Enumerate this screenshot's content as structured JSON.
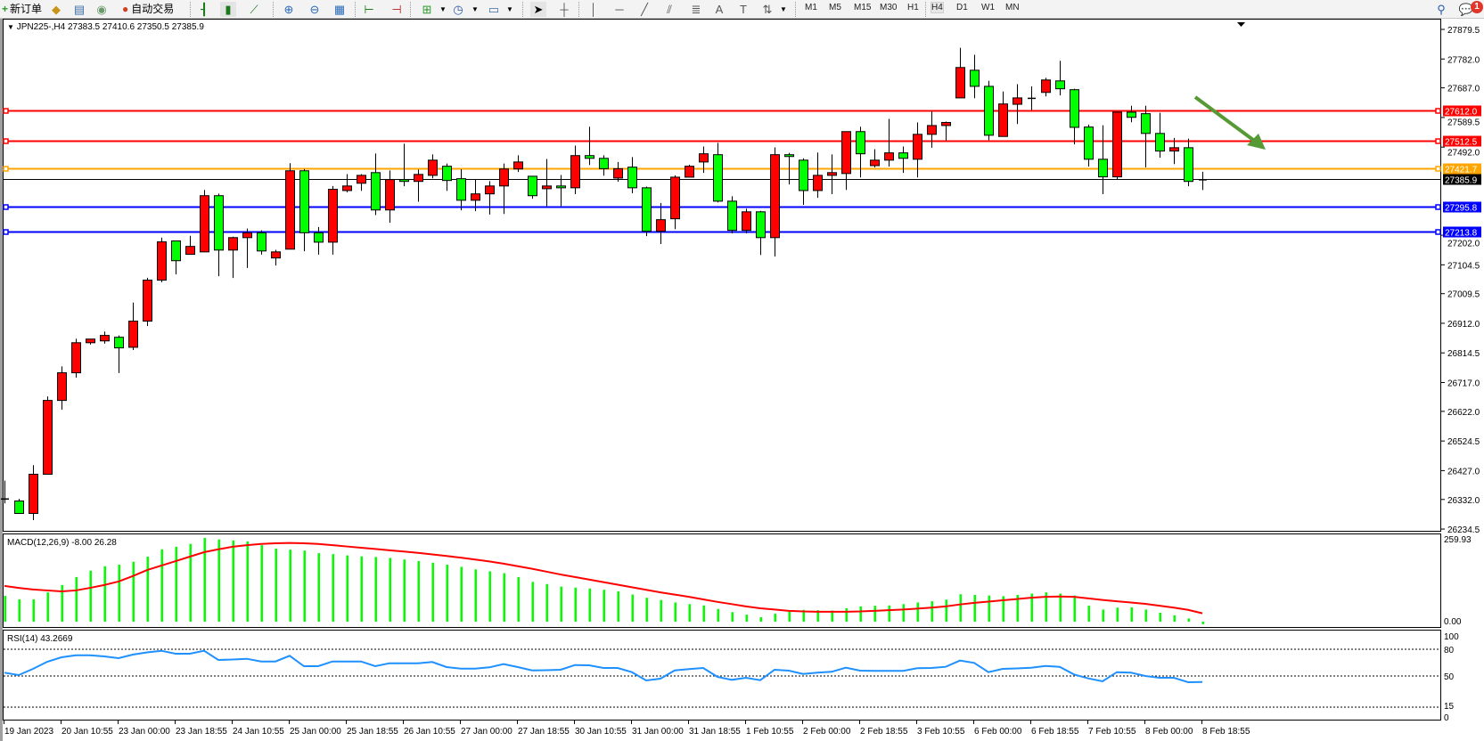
{
  "toolbar": {
    "new_order_label": "新订单",
    "autotrade_label": "自动交易",
    "icons": [
      "new-order-icon",
      "market-watch-icon",
      "navigator-icon",
      "signals-icon",
      "autotrading-icon",
      "bar-chart-icon",
      "candlestick-icon",
      "line-chart-icon",
      "zoom-in-icon",
      "zoom-out-icon",
      "tile-windows-icon",
      "chart-shift-icon",
      "autoscroll-icon",
      "new-chart-icon",
      "periods-icon",
      "templates-icon",
      "cursor-icon",
      "crosshair-icon",
      "vertical-line-icon",
      "horizontal-line-icon",
      "trendline-icon",
      "equidistant-channel-icon",
      "fibonacci-icon",
      "text-icon",
      "text-label-icon",
      "arrows-icon",
      "search-icon",
      "notifications-icon"
    ],
    "timeframes": [
      "M1",
      "M5",
      "M15",
      "M30",
      "H1",
      "H4",
      "D1",
      "W1",
      "MN"
    ],
    "active_timeframe": "H4",
    "notification_count": "1"
  },
  "chart": {
    "title": "JPN225-,H4  27383.5 27410.6 27350.5 27385.9",
    "colors": {
      "bull": "#ff0000",
      "bear": "#00ff00",
      "resistance": "#ff0000",
      "pivot": "#ffa500",
      "support": "#0000ff",
      "bid": "#000000",
      "arrow": "#559a35"
    },
    "price_axis_labels": [
      "27879.5",
      "27782.0",
      "27687.0",
      "27589.5",
      "27492.0",
      "27202.0",
      "27104.5",
      "27009.5",
      "26912.0",
      "26814.5",
      "26717.0",
      "26622.0",
      "26524.5",
      "26427.0",
      "26332.0",
      "26234.5"
    ],
    "levels": [
      {
        "price": "27612.0",
        "kind": "resistance"
      },
      {
        "price": "27512.5",
        "kind": "resistance"
      },
      {
        "price": "27421.7",
        "kind": "pivot"
      },
      {
        "price": "27385.9",
        "kind": "bid"
      },
      {
        "price": "27295.8",
        "kind": "support"
      },
      {
        "price": "27213.8",
        "kind": "support"
      }
    ],
    "arrow_direction": "down",
    "time_labels": [
      "19 Jan 2023",
      "20 Jan 10:55",
      "23 Jan 00:00",
      "23 Jan 18:55",
      "24 Jan 10:55",
      "25 Jan 00:00",
      "25 Jan 18:55",
      "26 Jan 10:55",
      "27 Jan 00:00",
      "27 Jan 18:55",
      "30 Jan 10:55",
      "31 Jan 00:00",
      "31 Jan 18:55",
      "1 Feb 10:55",
      "2 Feb 00:00",
      "2 Feb 18:55",
      "3 Feb 10:55",
      "6 Feb 00:00",
      "6 Feb 18:55",
      "7 Feb 10:55",
      "8 Feb 00:00",
      "8 Feb 18:55"
    ]
  },
  "chart_data": [
    {
      "type": "candlestick",
      "title": "JPN225-,H4",
      "ylim": [
        26234.5,
        27879.5
      ],
      "ohlc": [
        [
          26335,
          26394,
          26319,
          26331
        ],
        [
          26327,
          26334,
          26286,
          26286
        ],
        [
          26286,
          26445,
          26264,
          26415
        ],
        [
          26415,
          26671,
          26415,
          26658
        ],
        [
          26658,
          26770,
          26628,
          26749
        ],
        [
          26749,
          26861,
          26733,
          26848
        ],
        [
          26848,
          26860,
          26842,
          26860
        ],
        [
          26854,
          26885,
          26845,
          26872
        ],
        [
          26866,
          26872,
          26748,
          26831
        ],
        [
          26833,
          26980,
          26824,
          26919
        ],
        [
          26919,
          27062,
          26903,
          27054
        ],
        [
          27054,
          27194,
          27047,
          27180
        ],
        [
          27183,
          27183,
          27073,
          27118
        ],
        [
          27139,
          27200,
          27139,
          27165
        ],
        [
          27147,
          27351,
          27147,
          27332
        ],
        [
          27332,
          27339,
          27067,
          27153
        ],
        [
          27153,
          27197,
          27061,
          27194
        ],
        [
          27194,
          27224,
          27094,
          27210
        ],
        [
          27210,
          27218,
          27138,
          27150
        ],
        [
          27127,
          27154,
          27102,
          27147
        ],
        [
          27156,
          27439,
          27156,
          27414
        ],
        [
          27414,
          27420,
          27149,
          27210
        ],
        [
          27210,
          27229,
          27138,
          27179
        ],
        [
          27179,
          27364,
          27138,
          27353
        ],
        [
          27349,
          27403,
          27343,
          27364
        ],
        [
          27373,
          27403,
          27348,
          27399
        ],
        [
          27408,
          27471,
          27268,
          27285
        ],
        [
          27285,
          27415,
          27243,
          27385
        ],
        [
          27385,
          27503,
          27363,
          27379
        ],
        [
          27379,
          27418,
          27312,
          27402
        ],
        [
          27399,
          27468,
          27389,
          27449
        ],
        [
          27429,
          27438,
          27348,
          27382
        ],
        [
          27388,
          27419,
          27284,
          27317
        ],
        [
          27317,
          27385,
          27281,
          27338
        ],
        [
          27338,
          27380,
          27270,
          27364
        ],
        [
          27364,
          27438,
          27272,
          27420
        ],
        [
          27420,
          27465,
          27410,
          27443
        ],
        [
          27396,
          27396,
          27322,
          27332
        ],
        [
          27355,
          27453,
          27298,
          27364
        ],
        [
          27364,
          27400,
          27298,
          27358
        ],
        [
          27358,
          27497,
          27337,
          27464
        ],
        [
          27464,
          27559,
          27433,
          27455
        ],
        [
          27455,
          27465,
          27398,
          27421
        ],
        [
          27390,
          27443,
          27378,
          27421
        ],
        [
          27426,
          27459,
          27340,
          27358
        ],
        [
          27358,
          27362,
          27199,
          27215
        ],
        [
          27215,
          27308,
          27173,
          27253
        ],
        [
          27256,
          27399,
          27222,
          27393
        ],
        [
          27393,
          27434,
          27393,
          27429
        ],
        [
          27443,
          27494,
          27407,
          27470
        ],
        [
          27467,
          27506,
          27310,
          27314
        ],
        [
          27314,
          27330,
          27208,
          27218
        ],
        [
          27218,
          27289,
          27208,
          27279
        ],
        [
          27279,
          27282,
          27137,
          27194
        ],
        [
          27194,
          27491,
          27132,
          27467
        ],
        [
          27467,
          27473,
          27369,
          27461
        ],
        [
          27449,
          27455,
          27302,
          27349
        ],
        [
          27349,
          27474,
          27325,
          27399
        ],
        [
          27399,
          27468,
          27337,
          27408
        ],
        [
          27405,
          27543,
          27351,
          27543
        ],
        [
          27543,
          27559,
          27392,
          27470
        ],
        [
          27431,
          27485,
          27425,
          27449
        ],
        [
          27449,
          27585,
          27428,
          27473
        ],
        [
          27473,
          27494,
          27407,
          27455
        ],
        [
          27452,
          27573,
          27392,
          27534
        ],
        [
          27534,
          27610,
          27490,
          27563
        ],
        [
          27563,
          27576,
          27513,
          27573
        ],
        [
          27654,
          27819,
          27654,
          27754
        ],
        [
          27745,
          27796,
          27653,
          27692
        ],
        [
          27692,
          27710,
          27515,
          27531
        ],
        [
          27527,
          27675,
          27527,
          27634
        ],
        [
          27633,
          27699,
          27568,
          27654
        ],
        [
          27654,
          27692,
          27614,
          27654
        ],
        [
          27672,
          27720,
          27659,
          27713
        ],
        [
          27710,
          27776,
          27662,
          27684
        ],
        [
          27681,
          27684,
          27501,
          27557
        ],
        [
          27558,
          27566,
          27428,
          27452
        ],
        [
          27452,
          27564,
          27337,
          27394
        ],
        [
          27394,
          27607,
          27386,
          27607
        ],
        [
          27607,
          27628,
          27574,
          27590
        ],
        [
          27602,
          27628,
          27425,
          27537
        ],
        [
          27537,
          27605,
          27457,
          27479
        ],
        [
          27479,
          27522,
          27436,
          27490
        ],
        [
          27490,
          27520,
          27363,
          27379
        ],
        [
          27383.5,
          27410.6,
          27350.5,
          27385.9
        ]
      ]
    },
    {
      "type": "bar",
      "title": "MACD(12,26,9) -8.00 26.28",
      "axis_labels": [
        "259.93",
        "0.00"
      ],
      "ylim": [
        0,
        259.93
      ],
      "series": [
        {
          "name": "MACD",
          "values": [
            81,
            70,
            70,
            92,
            115,
            140,
            160,
            174,
            179,
            188,
            204,
            227,
            235,
            244,
            263,
            258,
            255,
            252,
            240,
            229,
            226,
            223,
            215,
            212,
            208,
            205,
            203,
            200,
            195,
            190,
            185,
            179,
            172,
            164,
            158,
            152,
            140,
            125,
            118,
            110,
            107,
            104,
            100,
            95,
            85,
            75,
            68,
            60,
            55,
            51,
            40,
            30,
            22,
            14,
            25,
            36,
            37,
            36,
            35,
            42,
            48,
            50,
            51,
            55,
            60,
            64,
            69,
            86,
            84,
            82,
            80,
            84,
            88,
            92,
            88,
            82,
            50,
            38,
            44,
            45,
            38,
            28,
            20,
            10,
            -8
          ]
        },
        {
          "name": "Signal",
          "values": [
            112,
            106,
            101,
            98,
            95,
            98,
            106,
            115,
            126,
            143,
            162,
            176,
            190,
            204,
            218,
            227,
            235,
            240,
            244,
            246,
            247,
            246,
            244,
            240,
            236,
            232,
            228,
            224,
            220,
            216,
            211,
            206,
            201,
            195,
            189,
            182,
            174,
            166,
            157,
            148,
            140,
            132,
            124,
            116,
            108,
            100,
            92,
            85,
            78,
            70,
            62,
            55,
            48,
            42,
            38,
            34,
            32,
            31,
            31,
            31,
            32,
            34,
            36,
            38,
            41,
            44,
            48,
            54,
            59,
            63,
            67,
            71,
            75,
            78,
            79,
            78,
            73,
            68,
            64,
            60,
            56,
            50,
            44,
            37,
            26.28
          ]
        }
      ]
    },
    {
      "type": "line",
      "title": "RSI(14) 43.2669",
      "ylim": [
        0,
        100
      ],
      "levels": [
        "100",
        "80",
        "50",
        "15",
        "0"
      ],
      "values": [
        53.7,
        51,
        58,
        66,
        71,
        73.3,
        73.3,
        72,
        70,
        74,
        76.5,
        78.3,
        75,
        75,
        78.3,
        68,
        68.5,
        69.3,
        66.3,
        66.3,
        72.7,
        61,
        61,
        66.3,
        66.3,
        66.3,
        61,
        64.3,
        64.3,
        64.3,
        65.7,
        60,
        58.3,
        58.3,
        59.7,
        63.3,
        60,
        56.3,
        56.5,
        57,
        62.3,
        62,
        59,
        59,
        54.3,
        45,
        47,
        56.3,
        57.7,
        59,
        49,
        45.7,
        48,
        45.3,
        57,
        56,
        52.3,
        53.7,
        54.7,
        59.3,
        56,
        55.7,
        55.7,
        55.7,
        58.7,
        59,
        60.3,
        67.3,
        64.7,
        54.3,
        58,
        58.5,
        59.3,
        61.3,
        60.3,
        51.7,
        47.3,
        44,
        54.3,
        53.7,
        50,
        48,
        48,
        43,
        43.27
      ]
    }
  ]
}
